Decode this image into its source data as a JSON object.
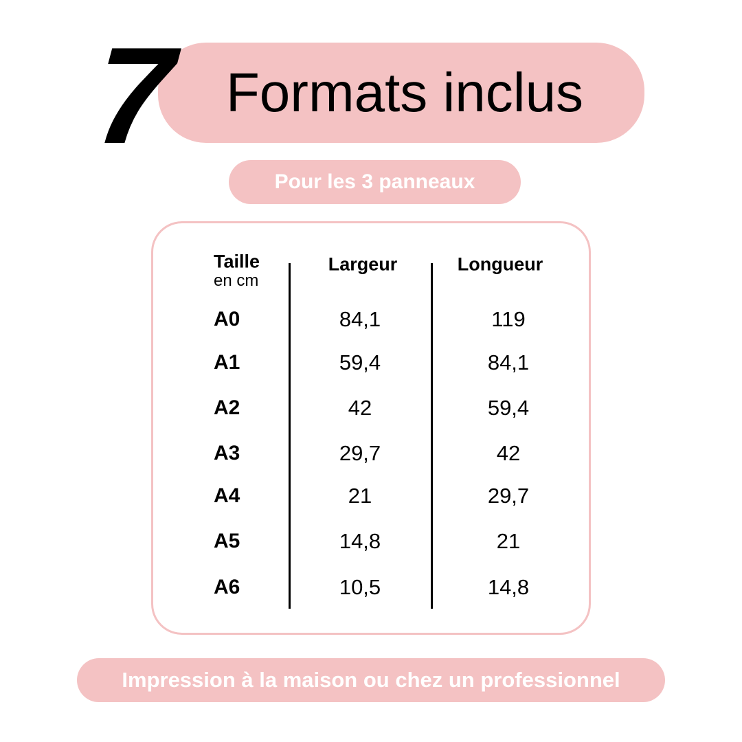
{
  "header": {
    "count": "7",
    "title": "Formats inclus",
    "subtitle": "Pour les 3 panneaux"
  },
  "table": {
    "headers": {
      "size": "Taille",
      "size_unit": "en cm",
      "width": "Largeur",
      "length": "Longueur"
    },
    "rows": [
      {
        "size": "A0",
        "width": "84,1",
        "length": "119"
      },
      {
        "size": "A1",
        "width": "59,4",
        "length": "84,1"
      },
      {
        "size": "A2",
        "width": "42",
        "length": "59,4"
      },
      {
        "size": "A3",
        "width": "29,7",
        "length": "42"
      },
      {
        "size": "A4",
        "width": "21",
        "length": "29,7"
      },
      {
        "size": "A5",
        "width": "14,8",
        "length": "21"
      },
      {
        "size": "A6",
        "width": "10,5",
        "length": "14,8"
      }
    ]
  },
  "footer": {
    "text": "Impression à la maison ou chez un professionnel"
  },
  "colors": {
    "accent": "#f4c2c3",
    "text": "#000000"
  }
}
